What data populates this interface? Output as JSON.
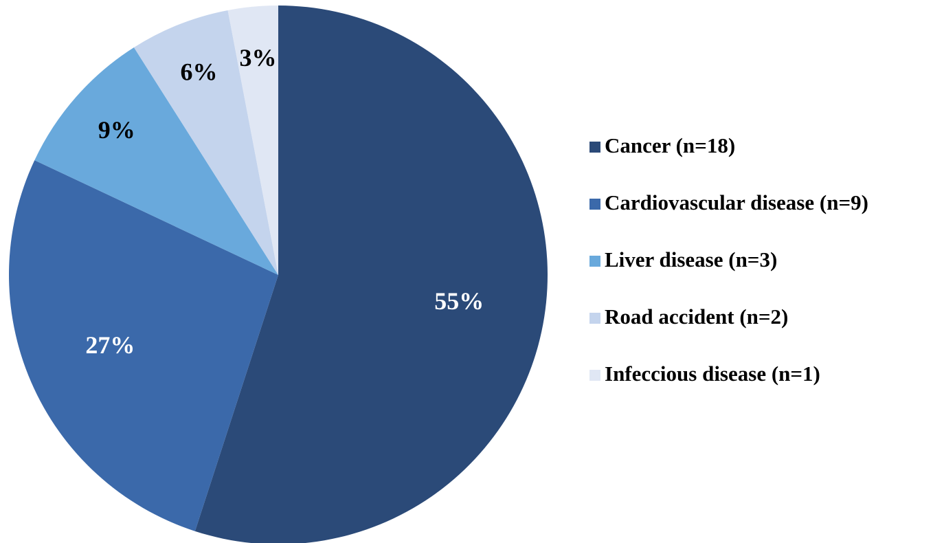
{
  "chart_data": {
    "type": "pie",
    "categories": [
      "Cancer (n=18)",
      "Cardiovascular disease (n=9)",
      "Liver disease (n=3)",
      "Road accident (n=2)",
      "Infeccious disease (n=1)"
    ],
    "values": [
      55,
      27,
      9,
      6,
      3
    ],
    "value_labels": [
      "55%",
      "27%",
      "9%",
      "6%",
      "3%"
    ],
    "colors": [
      "#2b4a78",
      "#3b69aa",
      "#69a9dc",
      "#c4d4ed",
      "#e0e7f4"
    ],
    "label_colors": [
      "#ffffff",
      "#ffffff",
      "#000000",
      "#000000",
      "#000000"
    ],
    "legend": "right"
  }
}
